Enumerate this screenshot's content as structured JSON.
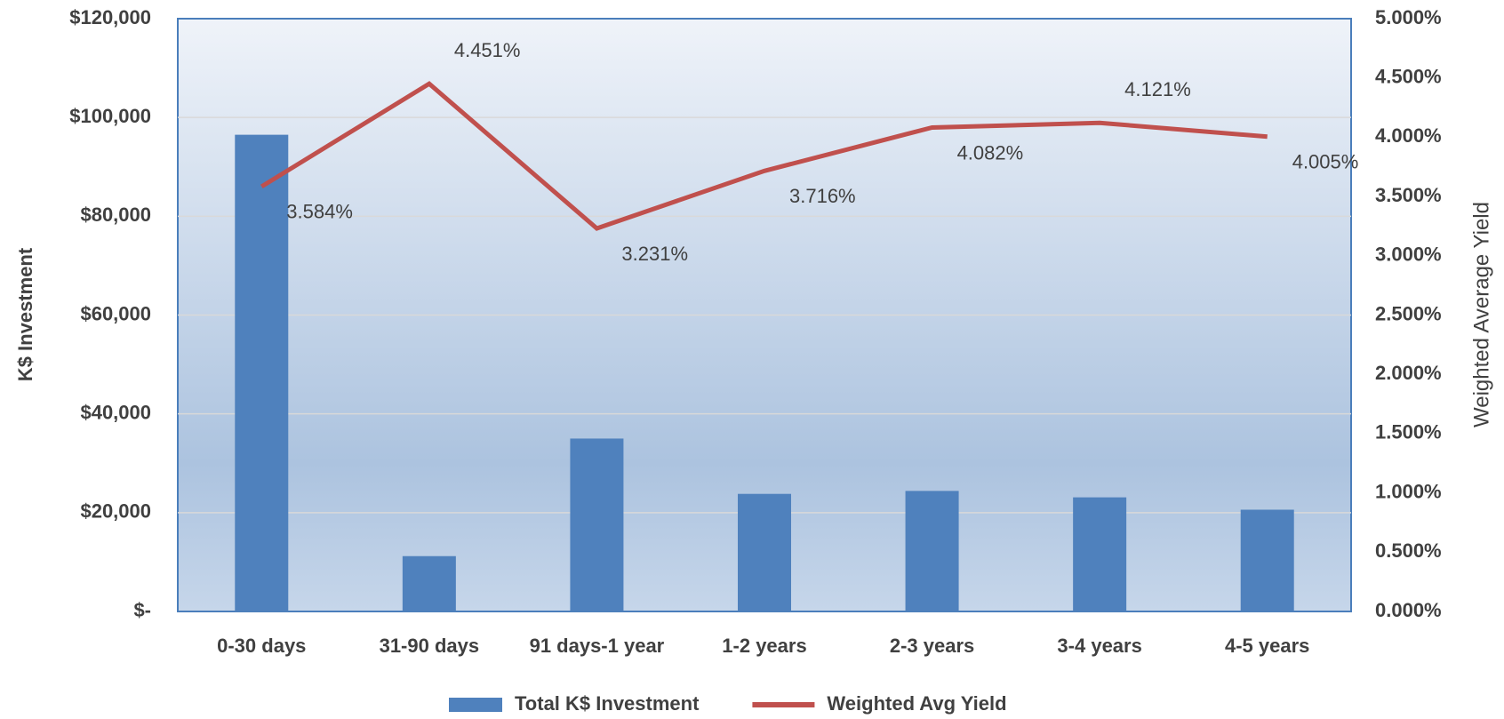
{
  "chart_data": {
    "type": "bar_line",
    "categories": [
      "0-30 days",
      "31-90 days",
      "91 days-1 year",
      "1-2 years",
      "2-3 years",
      "3-4 years",
      "4-5 years"
    ],
    "y_label": "K$ Investment",
    "y2_label": "Weighted Average Yield",
    "series": [
      {
        "name": "Total K$ Investment",
        "type": "bar",
        "color": "#4f81bd",
        "values": [
          96500,
          11200,
          35000,
          23800,
          24400,
          23100,
          20600
        ]
      },
      {
        "name": "Weighted Avg Yield",
        "type": "line",
        "axis": "y2",
        "color": "#c0504d",
        "values": [
          3.584,
          4.451,
          3.231,
          3.716,
          4.082,
          4.121,
          4.005
        ],
        "value_labels": [
          "3.584%",
          "4.451%",
          "3.231%",
          "3.716%",
          "4.082%",
          "4.121%",
          "4.005%"
        ]
      }
    ],
    "ylim": [
      0,
      120000
    ],
    "yticks": [
      {
        "value": 0,
        "label": "$-"
      },
      {
        "value": 20000,
        "label": "$20,000"
      },
      {
        "value": 40000,
        "label": "$40,000"
      },
      {
        "value": 60000,
        "label": "$60,000"
      },
      {
        "value": 80000,
        "label": "$80,000"
      },
      {
        "value": 100000,
        "label": "$100,000"
      },
      {
        "value": 120000,
        "label": "$120,000"
      }
    ],
    "y2lim": [
      0,
      5
    ],
    "y2ticks": [
      {
        "value": 0,
        "label": "0.000%"
      },
      {
        "value": 0.5,
        "label": "0.500%"
      },
      {
        "value": 1,
        "label": "1.000%"
      },
      {
        "value": 1.5,
        "label": "1.500%"
      },
      {
        "value": 2,
        "label": "2.000%"
      },
      {
        "value": 2.5,
        "label": "2.500%"
      },
      {
        "value": 3,
        "label": "3.000%"
      },
      {
        "value": 3.5,
        "label": "3.500%"
      },
      {
        "value": 4,
        "label": "4.000%"
      },
      {
        "value": 4.5,
        "label": "4.500%"
      },
      {
        "value": 5,
        "label": "5.000%"
      }
    ],
    "grid": true,
    "legend": "bottom"
  }
}
